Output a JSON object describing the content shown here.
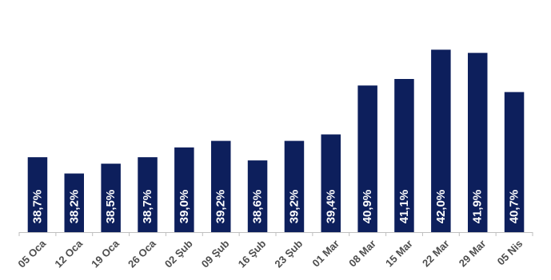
{
  "chart_data": {
    "type": "bar",
    "categories": [
      "05 Oca",
      "12 Oca",
      "19 Oca",
      "26 Oca",
      "02 Şub",
      "09 Şub",
      "16 Şub",
      "23 Şub",
      "01 Mar",
      "08 Mar",
      "15 Mar",
      "22 Mar",
      "29 Mar",
      "05 Nis"
    ],
    "values": [
      38.7,
      38.2,
      38.5,
      38.7,
      39.0,
      39.2,
      38.6,
      39.2,
      39.4,
      40.9,
      41.1,
      42.0,
      41.9,
      40.7
    ],
    "labels": [
      "38,7%",
      "38,2%",
      "38,5%",
      "38,7%",
      "39,0%",
      "39,2%",
      "38,6%",
      "39,2%",
      "39,4%",
      "40,9%",
      "41,1%",
      "42,0%",
      "41,9%",
      "40,7%"
    ],
    "title": "",
    "xlabel": "",
    "ylabel": "",
    "ylim": [
      36.4,
      42.3
    ],
    "grid": false,
    "legend": "none",
    "bar_color": "#0d1f5c",
    "axis_color": "#bfbfbf",
    "tick_color": "#4d4d4d",
    "value_label_color": "#ffffff"
  }
}
